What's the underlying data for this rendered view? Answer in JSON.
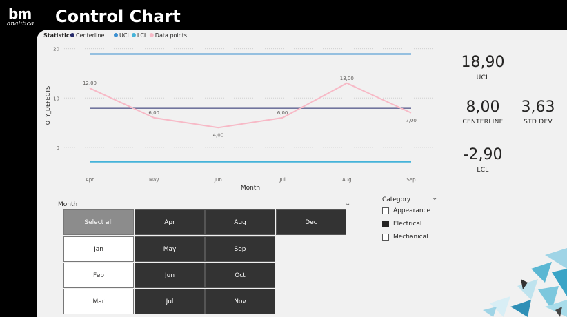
{
  "header": {
    "title": "Control Chart",
    "logo_text": "bm",
    "logo_subtext": "analitica"
  },
  "colors": {
    "centerline": "#252a6b",
    "ucl": "#3b8fd0",
    "lcl": "#45b3d9",
    "data_points": "#f7b9c6",
    "panel_bg": "#f1f1f1",
    "selected_button": "#333333"
  },
  "chart_data": {
    "type": "line",
    "legend_title": "Statistics",
    "legend": [
      "Centerline",
      "UCL",
      "LCL",
      "Data points"
    ],
    "categories": [
      "Apr",
      "May",
      "Jun",
      "Jul",
      "Aug",
      "Sep"
    ],
    "xlabel": "Month",
    "ylabel": "QTY_DEFECTS",
    "yticks": [
      "20",
      "10",
      "0"
    ],
    "ylim": [
      -3.5,
      20.5
    ],
    "series": [
      {
        "name": "Centerline",
        "values": [
          8,
          8,
          8,
          8,
          8,
          8
        ]
      },
      {
        "name": "UCL",
        "values": [
          18.9,
          18.9,
          18.9,
          18.9,
          18.9,
          18.9
        ]
      },
      {
        "name": "LCL",
        "values": [
          -2.9,
          -2.9,
          -2.9,
          -2.9,
          -2.9,
          -2.9
        ]
      },
      {
        "name": "Data points",
        "values": [
          12,
          6,
          4,
          6,
          13,
          7
        ]
      }
    ],
    "data_labels": [
      "12,00",
      "6,00",
      "4,00",
      "6,00",
      "13,00",
      "7,00"
    ]
  },
  "cards": {
    "ucl": {
      "value": "18,90",
      "label": "UCL"
    },
    "centerline": {
      "value": "8,00",
      "label": "CENTERLINE"
    },
    "std_dev": {
      "value": "3,63",
      "label": "STD DEV"
    },
    "lcl": {
      "value": "-2,90",
      "label": "LCL"
    }
  },
  "month_slicer": {
    "title": "Month",
    "select_all": "Select all",
    "buttons": [
      {
        "label": "Apr",
        "selected": true
      },
      {
        "label": "Aug",
        "selected": true
      },
      {
        "label": "Dec",
        "selected": true
      },
      {
        "label": "Jan",
        "selected": false
      },
      {
        "label": "May",
        "selected": true
      },
      {
        "label": "Sep",
        "selected": true
      },
      {
        "label": "Feb",
        "selected": false
      },
      {
        "label": "Jun",
        "selected": true
      },
      {
        "label": "Oct",
        "selected": true
      },
      {
        "label": "Mar",
        "selected": false
      },
      {
        "label": "Jul",
        "selected": true
      },
      {
        "label": "Nov",
        "selected": true
      }
    ]
  },
  "category_slicer": {
    "title": "Category",
    "items": [
      {
        "label": "Appearance",
        "checked": false
      },
      {
        "label": "Electrical",
        "checked": true
      },
      {
        "label": "Mechanical",
        "checked": false
      }
    ]
  }
}
